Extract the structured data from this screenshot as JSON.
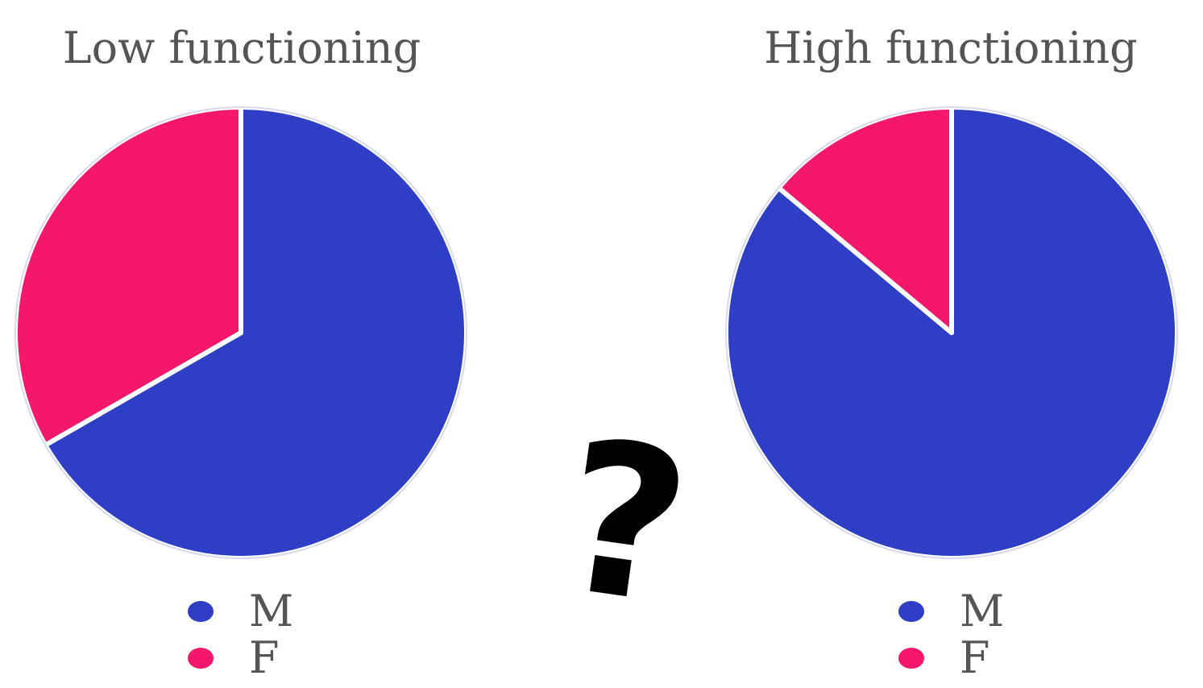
{
  "colors": {
    "M": "#2e3ec5",
    "F": "#f4176b",
    "title_text": "#555555"
  },
  "question_mark": "?",
  "chart_data": [
    {
      "type": "pie",
      "title": "Low functioning",
      "labels": [
        "M",
        "F"
      ],
      "values": [
        0.667,
        0.333
      ],
      "legend": "bottom"
    },
    {
      "type": "pie",
      "title": "High functioning",
      "labels": [
        "M",
        "F"
      ],
      "values": [
        0.861,
        0.139
      ],
      "legend": "bottom"
    }
  ]
}
